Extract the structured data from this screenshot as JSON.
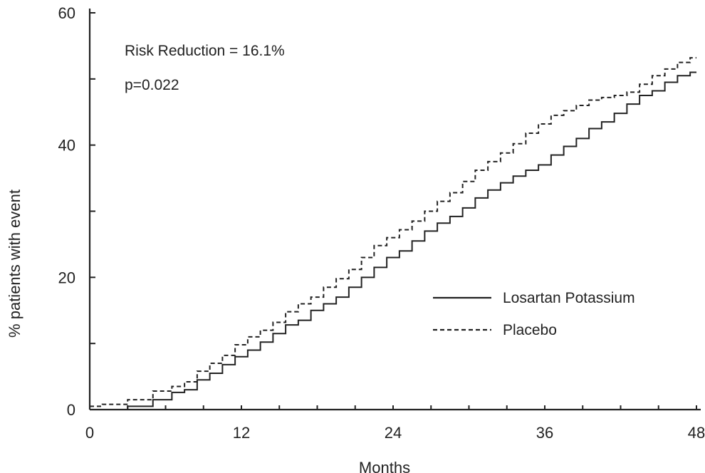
{
  "chart_data": {
    "type": "line",
    "title": "",
    "xlabel": "Months",
    "ylabel": "% patients with event",
    "xlim": [
      0,
      48
    ],
    "ylim": [
      0,
      60
    ],
    "x_ticks": [
      0,
      12,
      24,
      36,
      48
    ],
    "x_tick_labels": [
      "0",
      "12",
      "24",
      "36",
      "48"
    ],
    "y_ticks": [
      0,
      20,
      40,
      60
    ],
    "y_tick_labels": [
      "0",
      "20",
      "40",
      "60"
    ],
    "grid": false,
    "legend_position": "right-middle",
    "annotations": [
      "Risk Reduction = 16.1%",
      "p=0.022"
    ],
    "series": [
      {
        "name": "Losartan Potassium",
        "style": "solid",
        "color": "#222222",
        "x": [
          0,
          2,
          4,
          6,
          7,
          8,
          9,
          10,
          11,
          12,
          13,
          14,
          15,
          16,
          17,
          18,
          19,
          20,
          21,
          22,
          23,
          24,
          25,
          26,
          27,
          28,
          29,
          30,
          31,
          32,
          33,
          34,
          35,
          36,
          37,
          38,
          39,
          40,
          41,
          42,
          43,
          44,
          45,
          46,
          47,
          48
        ],
        "y": [
          0,
          0,
          0.5,
          1.5,
          2.6,
          3.0,
          4.5,
          5.5,
          6.8,
          8.0,
          9.0,
          10.2,
          11.5,
          12.8,
          13.5,
          15.0,
          16.0,
          17.0,
          18.5,
          20.0,
          21.5,
          23.0,
          24.0,
          25.5,
          27.0,
          28.2,
          29.2,
          30.5,
          32.0,
          33.2,
          34.3,
          35.3,
          36.2,
          37.0,
          38.5,
          39.8,
          41.0,
          42.5,
          43.5,
          44.8,
          46.2,
          47.5,
          48.2,
          49.5,
          50.5,
          51.0
        ]
      },
      {
        "name": "Placebo",
        "style": "dashed",
        "color": "#222222",
        "x": [
          0,
          2,
          4,
          6,
          7,
          8,
          9,
          10,
          11,
          12,
          13,
          14,
          15,
          16,
          17,
          18,
          19,
          20,
          21,
          22,
          23,
          24,
          25,
          26,
          27,
          28,
          29,
          30,
          31,
          32,
          33,
          34,
          35,
          36,
          37,
          38,
          39,
          40,
          41,
          42,
          43,
          44,
          45,
          46,
          47,
          48
        ],
        "y": [
          0.5,
          0.8,
          1.5,
          2.8,
          3.5,
          4.2,
          5.8,
          7.0,
          8.2,
          9.8,
          11.0,
          12.0,
          13.2,
          14.8,
          16.0,
          17.0,
          18.5,
          19.8,
          21.2,
          23.0,
          24.8,
          26.0,
          27.2,
          28.5,
          30.0,
          31.5,
          32.8,
          34.5,
          36.2,
          37.5,
          38.8,
          40.2,
          41.8,
          43.2,
          44.5,
          45.2,
          46.0,
          46.8,
          47.2,
          47.5,
          48.0,
          49.2,
          50.5,
          51.5,
          52.5,
          53.2
        ]
      }
    ]
  }
}
